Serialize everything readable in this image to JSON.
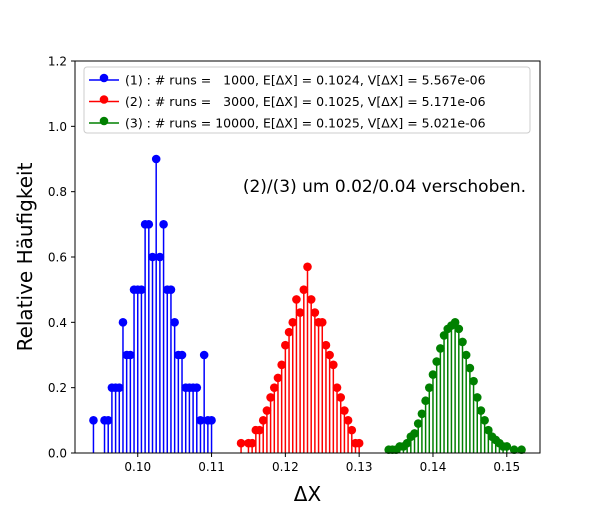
{
  "chart_data": {
    "type": "stem",
    "title": "",
    "xlabel": "ΔX",
    "ylabel": "Relative Häufigkeit",
    "xlim": [
      0.0915,
      0.1545
    ],
    "ylim": [
      0.0,
      1.2
    ],
    "xticks": [
      0.1,
      0.11,
      0.12,
      0.13,
      0.14,
      0.15
    ],
    "xtick_labels": [
      "0.10",
      "0.11",
      "0.12",
      "0.13",
      "0.14",
      "0.15"
    ],
    "yticks": [
      0.0,
      0.2,
      0.4,
      0.6,
      0.8,
      1.0,
      1.2
    ],
    "ytick_labels": [
      "0.0",
      "0.2",
      "0.4",
      "0.6",
      "0.8",
      "1.0",
      "1.2"
    ],
    "grid": false,
    "legend_position": "top-right",
    "annotation": "(2)/(3) um 0.02/0.04 verschoben.",
    "series": [
      {
        "name": "(1) : # runs =   1000, E[ΔX] = 0.1024, V[ΔX] = 5.567e-06",
        "color": "#0000ff",
        "x": [
          0.094,
          0.0955,
          0.096,
          0.0965,
          0.097,
          0.0975,
          0.098,
          0.0985,
          0.099,
          0.0995,
          0.1,
          0.1005,
          0.101,
          0.1015,
          0.102,
          0.1025,
          0.103,
          0.1035,
          0.104,
          0.1045,
          0.105,
          0.1055,
          0.106,
          0.1065,
          0.107,
          0.1075,
          0.108,
          0.1085,
          0.109,
          0.1095,
          0.11
        ],
        "y": [
          0.1,
          0.1,
          0.1,
          0.2,
          0.2,
          0.2,
          0.4,
          0.3,
          0.3,
          0.5,
          0.5,
          0.5,
          0.7,
          0.7,
          0.6,
          0.9,
          0.6,
          0.7,
          0.5,
          0.5,
          0.4,
          0.3,
          0.3,
          0.2,
          0.2,
          0.2,
          0.2,
          0.1,
          0.3,
          0.1,
          0.1
        ]
      },
      {
        "name": "(2) : # runs =   3000, E[ΔX] = 0.1025, V[ΔX] = 5.171e-06",
        "color": "#ff0000",
        "x": [
          0.114,
          0.115,
          0.1155,
          0.116,
          0.1165,
          0.117,
          0.1175,
          0.118,
          0.1185,
          0.119,
          0.1195,
          0.12,
          0.1205,
          0.121,
          0.1215,
          0.122,
          0.1225,
          0.123,
          0.1235,
          0.124,
          0.1245,
          0.125,
          0.1255,
          0.126,
          0.1265,
          0.127,
          0.1275,
          0.128,
          0.1285,
          0.129,
          0.1295,
          0.13
        ],
        "y": [
          0.03,
          0.03,
          0.03,
          0.07,
          0.07,
          0.1,
          0.13,
          0.17,
          0.2,
          0.23,
          0.27,
          0.33,
          0.37,
          0.4,
          0.47,
          0.43,
          0.5,
          0.57,
          0.47,
          0.43,
          0.4,
          0.4,
          0.33,
          0.3,
          0.27,
          0.2,
          0.17,
          0.13,
          0.1,
          0.07,
          0.03,
          0.03
        ]
      },
      {
        "name": "(3) : # runs = 10000, E[ΔX] = 0.1025, V[ΔX] = 5.021e-06",
        "color": "#008000",
        "x": [
          0.134,
          0.1345,
          0.135,
          0.1355,
          0.136,
          0.1365,
          0.137,
          0.1375,
          0.138,
          0.1385,
          0.139,
          0.1395,
          0.14,
          0.1405,
          0.141,
          0.1415,
          0.142,
          0.1425,
          0.143,
          0.1435,
          0.144,
          0.1445,
          0.145,
          0.1455,
          0.146,
          0.1465,
          0.147,
          0.1475,
          0.148,
          0.1485,
          0.149,
          0.1495,
          0.15,
          0.151,
          0.152
        ],
        "y": [
          0.01,
          0.01,
          0.01,
          0.02,
          0.02,
          0.03,
          0.05,
          0.06,
          0.09,
          0.12,
          0.16,
          0.2,
          0.24,
          0.28,
          0.32,
          0.36,
          0.38,
          0.39,
          0.4,
          0.38,
          0.34,
          0.3,
          0.26,
          0.22,
          0.17,
          0.13,
          0.1,
          0.07,
          0.05,
          0.04,
          0.03,
          0.02,
          0.02,
          0.01,
          0.01
        ]
      }
    ]
  }
}
